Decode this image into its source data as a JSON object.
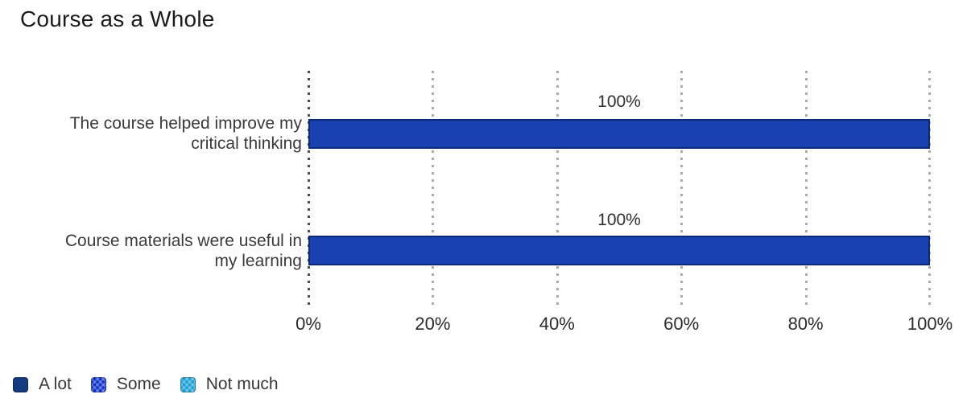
{
  "title": "Course as a Whole",
  "chart_data": {
    "type": "bar",
    "orientation": "horizontal",
    "title": "Course as a Whole",
    "categories": [
      "The course helped improve my critical thinking",
      "Course materials were useful in my learning"
    ],
    "series": [
      {
        "name": "A lot",
        "values": [
          100,
          100
        ]
      },
      {
        "name": "Some",
        "values": [
          0,
          0
        ]
      },
      {
        "name": "Not much",
        "values": [
          0,
          0
        ]
      }
    ],
    "data_labels": [
      "100%",
      "100%"
    ],
    "xlabel": "",
    "ylabel": "",
    "xlim": [
      0,
      100
    ],
    "x_ticks": [
      "0%",
      "20%",
      "40%",
      "60%",
      "80%",
      "100%"
    ],
    "grid": "vertical dotted gridlines",
    "legend_position": "bottom-left"
  },
  "rows": [
    {
      "label_line1": "The course helped improve my",
      "label_line2": "critical thinking",
      "value": 100,
      "value_label": "100%"
    },
    {
      "label_line1": "Course materials were useful in",
      "label_line2": "my learning",
      "value": 100,
      "value_label": "100%"
    }
  ],
  "legend": {
    "items": [
      {
        "label": "A lot",
        "color": "#143a80"
      },
      {
        "label": "Some",
        "color": "#0c31cb"
      },
      {
        "label": "Not much",
        "color": "#189fd6"
      }
    ]
  },
  "colors": {
    "bar_fill": "#1a41b2",
    "bar_border": "#0d2a78",
    "grid_line": "#a9a9a9",
    "grid_zero_line": "#4d4d4d",
    "text": "#3a3a3a"
  }
}
